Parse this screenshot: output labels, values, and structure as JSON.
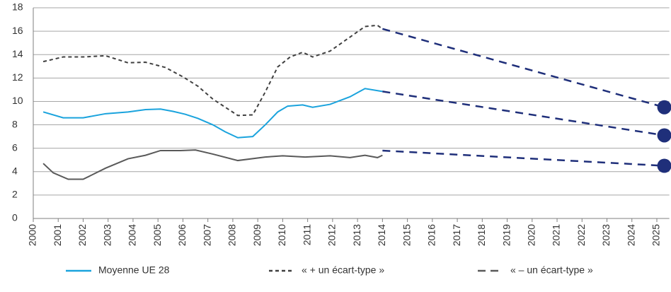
{
  "chart_data": {
    "type": "line",
    "xlim": [
      2000,
      2025.5
    ],
    "xticks": [
      2000,
      2001,
      2002,
      2003,
      2004,
      2005,
      2006,
      2007,
      2008,
      2009,
      2010,
      2011,
      2012,
      2013,
      2014,
      2015,
      2016,
      2017,
      2018,
      2019,
      2020,
      2021,
      2022,
      2023,
      2024,
      2025
    ],
    "ylim": [
      0,
      18
    ],
    "yticks": [
      0,
      2,
      4,
      6,
      8,
      10,
      12,
      14,
      16,
      18
    ],
    "grid": true,
    "legend": "bottom",
    "series": [
      {
        "name": "Moyenne UE 28",
        "color": "#1aa3dd",
        "dash": "none",
        "x": [
          2000.4,
          2001.2,
          2002.0,
          2002.9,
          2003.8,
          2004.5,
          2005.1,
          2005.6,
          2006.1,
          2006.6,
          2007.2,
          2007.7,
          2008.2,
          2008.8,
          2009.3,
          2009.8,
          2010.2,
          2010.8,
          2011.2,
          2011.9,
          2012.7,
          2013.3,
          2014.0
        ],
        "values": [
          9.1,
          8.6,
          8.6,
          8.95,
          9.1,
          9.3,
          9.35,
          9.15,
          8.9,
          8.55,
          8.0,
          7.4,
          6.9,
          7.0,
          8.0,
          9.1,
          9.6,
          9.7,
          9.5,
          9.75,
          10.4,
          11.1,
          10.85
        ]
      },
      {
        "name": "« + un écart-type »",
        "color": "#404040",
        "dash": "5,4",
        "x": [
          2000.4,
          2001.2,
          2002.0,
          2002.9,
          2003.8,
          2004.5,
          2005.3,
          2006.0,
          2006.6,
          2007.2,
          2007.7,
          2008.2,
          2008.8,
          2009.3,
          2009.8,
          2010.3,
          2010.8,
          2011.2,
          2011.9,
          2012.7,
          2013.3,
          2013.8,
          2014.0
        ],
        "values": [
          13.4,
          13.8,
          13.8,
          13.9,
          13.3,
          13.35,
          12.9,
          12.1,
          11.3,
          10.2,
          9.5,
          8.8,
          8.85,
          10.8,
          12.95,
          13.8,
          14.2,
          13.8,
          14.3,
          15.5,
          16.4,
          16.5,
          16.2
        ]
      },
      {
        "name": "« – un écart-type »",
        "color": "#595959",
        "dash": "none",
        "legend_dash": "11,7",
        "x": [
          2000.4,
          2000.8,
          2001.4,
          2002.0,
          2002.9,
          2003.8,
          2004.5,
          2005.1,
          2005.9,
          2006.5,
          2007.2,
          2008.2,
          2009.3,
          2010.0,
          2010.9,
          2011.9,
          2012.7,
          2013.3,
          2013.8,
          2014.0
        ],
        "values": [
          4.7,
          3.9,
          3.35,
          3.35,
          4.3,
          5.1,
          5.4,
          5.8,
          5.8,
          5.85,
          5.5,
          4.95,
          5.25,
          5.35,
          5.25,
          5.35,
          5.2,
          5.4,
          5.2,
          5.4
        ]
      },
      {
        "color": "#1f2f7a",
        "dash": "11,8",
        "end_marker": true,
        "x": [
          2014.0,
          2025.3
        ],
        "values": [
          16.2,
          9.5
        ]
      },
      {
        "color": "#1f2f7a",
        "dash": "11,8",
        "end_marker": true,
        "x": [
          2014.0,
          2025.3
        ],
        "values": [
          10.85,
          7.1
        ]
      },
      {
        "color": "#1f2f7a",
        "dash": "11,8",
        "end_marker": true,
        "x": [
          2014.0,
          2025.3
        ],
        "values": [
          5.8,
          4.5
        ]
      }
    ]
  }
}
